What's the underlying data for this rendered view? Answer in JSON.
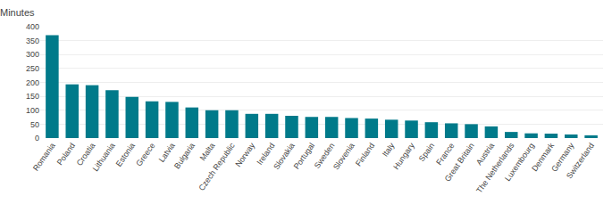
{
  "chart_data": {
    "type": "bar",
    "ylabel": "Minutes",
    "categories": [
      "Romania",
      "Poland",
      "Croatia",
      "Lithuania",
      "Estonia",
      "Greece",
      "Latvia",
      "Bulgaria",
      "Malta",
      "Czech Republic",
      "Norway",
      "Ireland",
      "Slovakia",
      "Portugal",
      "Sweden",
      "Slovenia",
      "Finland",
      "Italy",
      "Hungary",
      "Spain",
      "France",
      "Great Britain",
      "Austria",
      "The Netherlands",
      "Luxembourg",
      "Denmark",
      "Germany",
      "Switzerland"
    ],
    "values": [
      370,
      193,
      190,
      172,
      148,
      132,
      130,
      110,
      100,
      100,
      87,
      87,
      80,
      76,
      76,
      72,
      70,
      66,
      63,
      57,
      53,
      50,
      42,
      22,
      17,
      16,
      13,
      10
    ],
    "color": "#007A8A",
    "ylim": [
      0,
      400
    ],
    "yticks": [
      0,
      50,
      100,
      150,
      200,
      250,
      300,
      350,
      400
    ],
    "grid": true
  }
}
